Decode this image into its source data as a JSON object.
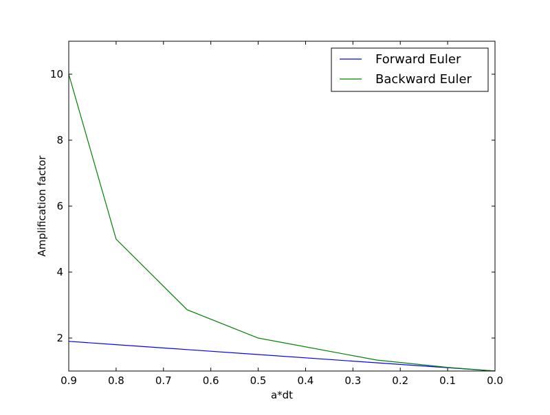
{
  "chart_data": {
    "type": "line",
    "title": "",
    "xlabel": "a*dt",
    "ylabel": "Amplification factor",
    "xlim": [
      0.9,
      0.0
    ],
    "ylim": [
      1,
      11
    ],
    "x_inverted": true,
    "xticks": [
      0.9,
      0.8,
      0.7,
      0.6,
      0.5,
      0.4,
      0.3,
      0.2,
      0.1,
      0.0
    ],
    "xtick_labels": [
      "0.9",
      "0.8",
      "0.7",
      "0.6",
      "0.5",
      "0.4",
      "0.3",
      "0.2",
      "0.1",
      "0.0"
    ],
    "yticks": [
      2,
      4,
      6,
      8,
      10
    ],
    "ytick_labels": [
      "2",
      "4",
      "6",
      "8",
      "10"
    ],
    "grid": false,
    "legend_position": "top-right",
    "series": [
      {
        "name": "Forward Euler",
        "color": "#0000ff",
        "x": [
          0.9,
          0.8,
          0.65,
          0.5,
          0.25,
          0.1,
          0.0
        ],
        "y": [
          1.9,
          1.8,
          1.65,
          1.5,
          1.25,
          1.1,
          1.0
        ]
      },
      {
        "name": "Backward Euler",
        "color": "#008000",
        "x": [
          0.9,
          0.8,
          0.65,
          0.5,
          0.25,
          0.1,
          0.0
        ],
        "y": [
          10.0,
          5.0,
          2.857,
          2.0,
          1.333,
          1.111,
          1.0
        ]
      }
    ]
  }
}
